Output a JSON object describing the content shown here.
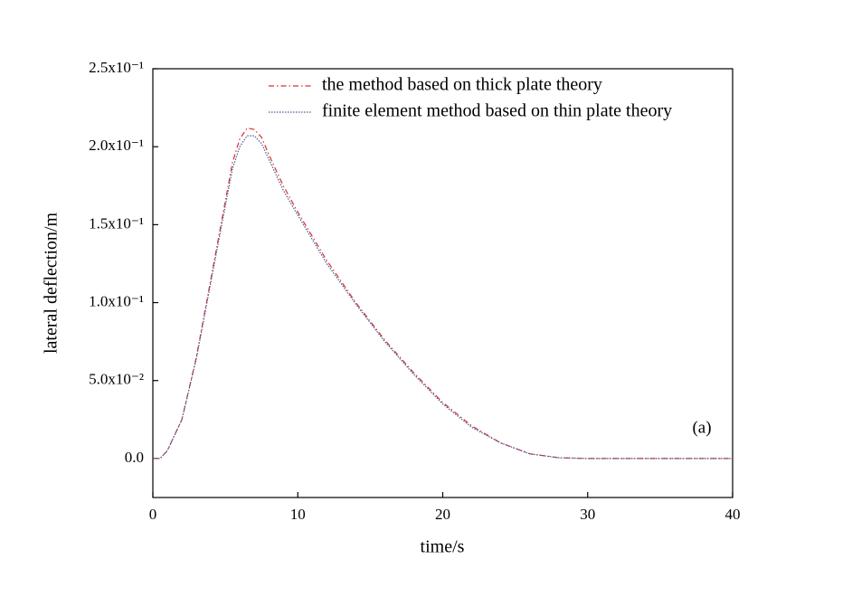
{
  "chart_data": {
    "type": "line",
    "xlabel": "time/s",
    "ylabel": "lateral deflection/m",
    "annotations": [
      "(a)"
    ],
    "x": [
      0,
      0.5,
      1,
      2,
      3,
      4,
      5,
      5.5,
      6,
      6.5,
      7,
      7.5,
      8,
      9,
      10,
      12,
      14,
      16,
      18,
      20,
      22,
      24,
      26,
      28,
      30,
      35,
      40
    ],
    "series": [
      {
        "name": "the method based on thick plate theory",
        "color": "#d9302c",
        "style": "dashdot",
        "values": [
          0,
          0,
          0.005,
          0.025,
          0.065,
          0.115,
          0.165,
          0.19,
          0.205,
          0.212,
          0.211,
          0.206,
          0.195,
          0.175,
          0.158,
          0.127,
          0.1,
          0.076,
          0.055,
          0.036,
          0.021,
          0.01,
          0.003,
          0.0005,
          0,
          0,
          0
        ]
      },
      {
        "name": "finite element method based on thin plate theory",
        "color": "#4a5a9a",
        "style": "dotted",
        "values": [
          0,
          0,
          0.005,
          0.025,
          0.064,
          0.113,
          0.162,
          0.186,
          0.2,
          0.207,
          0.207,
          0.202,
          0.192,
          0.172,
          0.156,
          0.125,
          0.099,
          0.075,
          0.054,
          0.035,
          0.02,
          0.01,
          0.003,
          0.0005,
          0,
          0,
          0
        ]
      }
    ],
    "xlim": [
      0,
      40
    ],
    "xticks": [
      0,
      10,
      20,
      30,
      40
    ],
    "ylim": [
      -0.025,
      0.25
    ],
    "yticks": [
      {
        "value": 0,
        "label": "0.0"
      },
      {
        "value": 0.05,
        "label": "5.0x10⁻²"
      },
      {
        "value": 0.1,
        "label": "1.0x10⁻¹"
      },
      {
        "value": 0.15,
        "label": "1.5x10⁻¹"
      },
      {
        "value": 0.2,
        "label": "2.0x10⁻¹"
      },
      {
        "value": 0.25,
        "label": "2.5x10⁻¹"
      }
    ],
    "grid": false,
    "legend": "top"
  }
}
